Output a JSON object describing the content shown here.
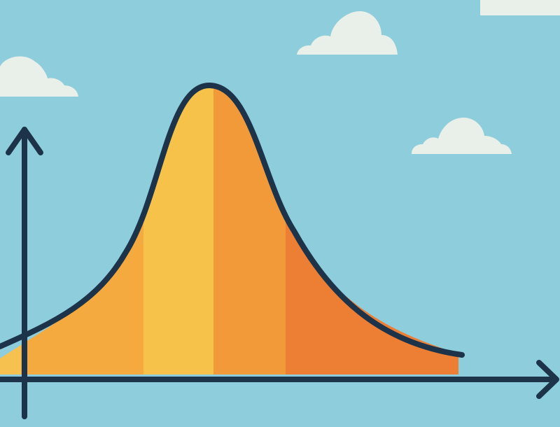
{
  "colors": {
    "sky": "#8ecddc",
    "cloud": "#e9efe9",
    "axis": "#1d334a",
    "curve": "#1d334a",
    "band_light_yellow": "#f6c24a",
    "band_yellow_orange": "#f4aa3e",
    "band_orange": "#f29a3a",
    "band_deep_orange": "#ec7f34",
    "band_left_light": "#f7c150"
  },
  "diagram": {
    "kind": "normal-distribution-bell-curve",
    "axes": [
      "x-axis-with-arrow",
      "y-axis-with-arrow"
    ],
    "shaded_bands": [
      {
        "id": "far-left",
        "color_key": "band_left_light"
      },
      {
        "id": "left",
        "color_key": "band_yellow_orange"
      },
      {
        "id": "center-left",
        "color_key": "band_light_yellow"
      },
      {
        "id": "center-right",
        "color_key": "band_orange"
      },
      {
        "id": "right",
        "color_key": "band_deep_orange"
      }
    ],
    "decorations": [
      "cloud-left",
      "cloud-top-center",
      "cloud-top-right",
      "cloud-right"
    ]
  }
}
